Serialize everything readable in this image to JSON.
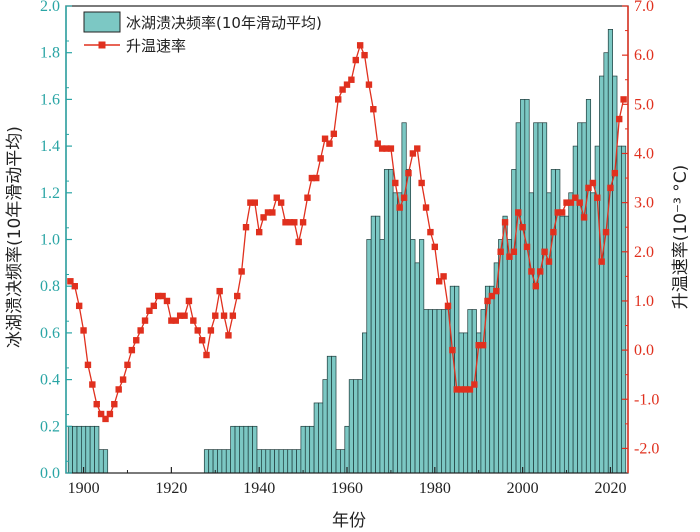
{
  "chart_data": {
    "type": "bar",
    "xlabel": "年份",
    "ylabel_left": "冰湖溃决频率(10年滑动平均)",
    "ylabel_right": "升温速率(10⁻³ °C)",
    "xlim": [
      1896,
      2024
    ],
    "ylim_left": [
      0,
      2.0
    ],
    "ylim_right": [
      -2.5,
      7.0
    ],
    "x_ticks": [
      "1900",
      "1920",
      "1940",
      "1960",
      "1980",
      "2000",
      "2020"
    ],
    "y_ticks_left": [
      "0.0",
      "0.2",
      "0.4",
      "0.6",
      "0.8",
      "1.0",
      "1.2",
      "1.4",
      "1.6",
      "1.8",
      "2.0"
    ],
    "y_ticks_right": [
      "-2.0",
      "-1.0",
      "0.0",
      "1.0",
      "2.0",
      "3.0",
      "4.0",
      "5.0",
      "6.0",
      "7.0"
    ],
    "grid": false,
    "legend_position": "top-left",
    "colors": {
      "bar": "#7cc8c4",
      "line": "#e0301e",
      "left_axis": "#2aa5a5",
      "right_axis": "#e0301e"
    },
    "series": [
      {
        "name": "冰湖溃决频率(10年滑动平均)",
        "type": "bar",
        "axis": "left",
        "start_year": 1897,
        "values": [
          0.2,
          0.2,
          0.2,
          0.2,
          0.2,
          0.2,
          0.2,
          0.1,
          0.1,
          0,
          0,
          0,
          0,
          0,
          0,
          0,
          0,
          0,
          0,
          0,
          0,
          0,
          0,
          0,
          0,
          0,
          0,
          0,
          0,
          0,
          0,
          0.1,
          0.1,
          0.1,
          0.1,
          0.1,
          0.1,
          0.2,
          0.2,
          0.2,
          0.2,
          0.2,
          0.2,
          0.1,
          0.1,
          0.1,
          0.1,
          0.1,
          0.1,
          0.1,
          0.1,
          0.1,
          0.1,
          0.2,
          0.2,
          0.2,
          0.3,
          0.3,
          0.4,
          0.5,
          0.5,
          0.1,
          0.1,
          0.2,
          0.4,
          0.4,
          0.4,
          0.6,
          1.0,
          1.1,
          1.1,
          1.0,
          1.3,
          1.3,
          1.2,
          1.2,
          1.5,
          1.3,
          1.0,
          0.9,
          1.0,
          0.7,
          0.7,
          0.7,
          0.7,
          0.7,
          0.7,
          0.8,
          0.8,
          0.6,
          0.6,
          0.7,
          0.7,
          0.6,
          0.7,
          0.8,
          0.8,
          0.9,
          1.0,
          1.1,
          1.0,
          1.3,
          1.5,
          1.6,
          1.6,
          1.2,
          1.5,
          1.5,
          1.5,
          1.2,
          1.3,
          1.3,
          1.1,
          1.1,
          1.2,
          1.4,
          1.5,
          1.5,
          1.6,
          1.2,
          1.4,
          1.7,
          1.8,
          1.9,
          1.7,
          1.4,
          1.4
        ]
      },
      {
        "name": "升温速率",
        "type": "line",
        "axis": "right",
        "start_year": 1897,
        "values": [
          1.4,
          1.3,
          0.9,
          0.4,
          -0.3,
          -0.7,
          -1.1,
          -1.3,
          -1.4,
          -1.3,
          -1.1,
          -0.8,
          -0.6,
          -0.3,
          0.0,
          0.2,
          0.4,
          0.6,
          0.8,
          0.9,
          1.1,
          1.1,
          1.0,
          0.6,
          0.6,
          0.7,
          0.7,
          1.0,
          0.6,
          0.4,
          0.2,
          -0.1,
          0.4,
          0.7,
          1.2,
          0.7,
          0.3,
          0.7,
          1.1,
          1.6,
          2.5,
          3.0,
          3.0,
          2.4,
          2.7,
          2.8,
          2.8,
          3.1,
          3.0,
          2.6,
          2.6,
          2.6,
          2.2,
          2.6,
          3.1,
          3.5,
          3.5,
          3.9,
          4.3,
          4.2,
          4.4,
          5.1,
          5.3,
          5.4,
          5.5,
          5.9,
          6.2,
          6.0,
          5.4,
          4.9,
          4.2,
          4.1,
          4.1,
          4.1,
          3.4,
          2.9,
          3.1,
          3.6,
          4.0,
          4.1,
          3.4,
          2.9,
          2.4,
          2.1,
          1.4,
          1.5,
          0.9,
          0.0,
          -0.8,
          -0.8,
          -0.8,
          -0.8,
          -0.7,
          0.1,
          0.1,
          1.0,
          1.1,
          1.2,
          2.0,
          2.6,
          1.9,
          2.0,
          2.8,
          2.5,
          2.1,
          1.6,
          1.3,
          1.6,
          2.0,
          1.8,
          2.4,
          2.8,
          2.8,
          3.0,
          3.0,
          3.1,
          3.0,
          2.7,
          3.3,
          3.4,
          3.1,
          1.8,
          2.4,
          3.3,
          3.6,
          4.7,
          5.1
        ]
      }
    ]
  }
}
